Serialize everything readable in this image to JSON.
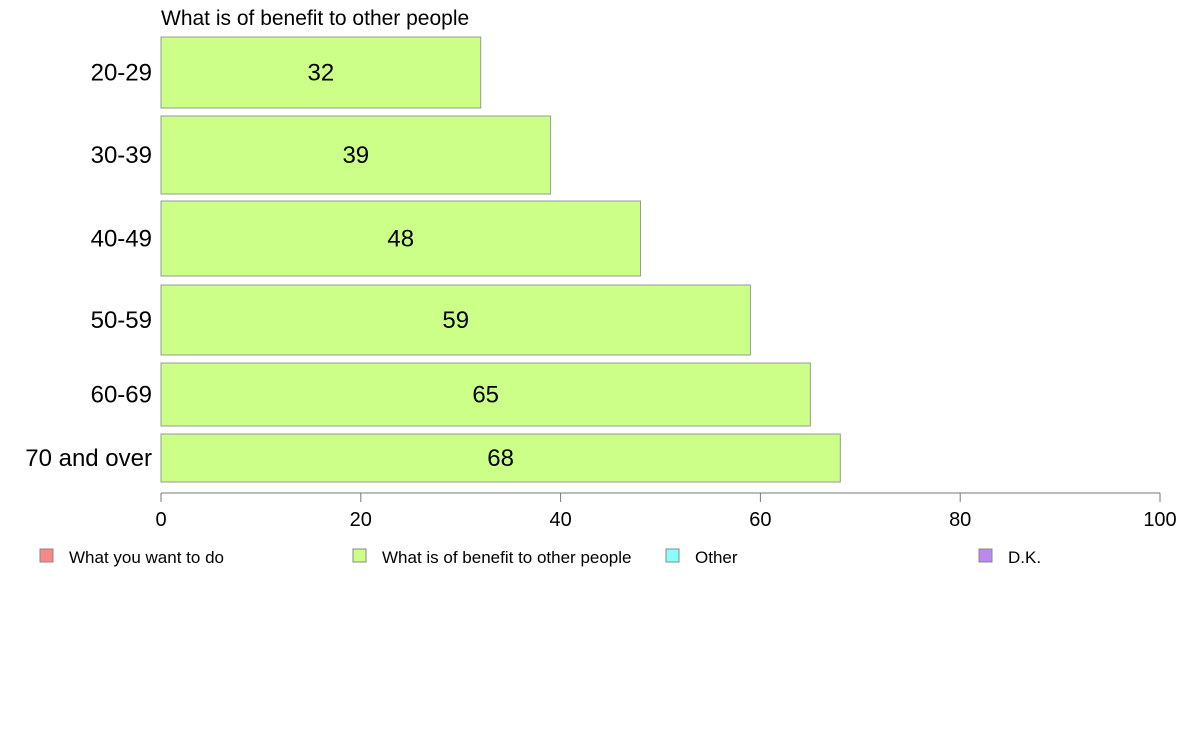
{
  "chart_data": {
    "type": "bar",
    "orientation": "horizontal",
    "title": "What is of benefit to other people",
    "categories": [
      "20-29",
      "30-39",
      "40-49",
      "50-59",
      "60-69",
      "70 and over"
    ],
    "series": [
      {
        "name": "What is of benefit to other people",
        "values": [
          32,
          39,
          48,
          59,
          65,
          68
        ],
        "color": "#ccff88"
      }
    ],
    "xlim": [
      0,
      100
    ],
    "xticks": [
      "0",
      "20",
      "40",
      "60",
      "80",
      "100"
    ],
    "grid": false,
    "legend_position": "bottom",
    "legend": [
      {
        "label": "What you want to do",
        "color": "#f88888"
      },
      {
        "label": "What is of benefit to other people",
        "color": "#ccff88"
      },
      {
        "label": "Other",
        "color": "#88ffff"
      },
      {
        "label": "D.K.",
        "color": "#bb88ee"
      }
    ]
  }
}
